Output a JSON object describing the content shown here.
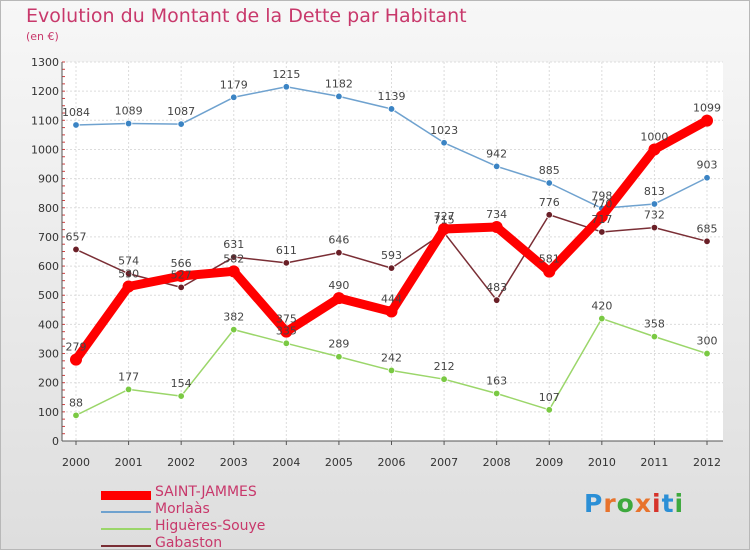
{
  "title": "Evolution du Montant de la Dette par Habitant",
  "subtitle": "(en €)",
  "logo": {
    "text": "Proxiti",
    "colors": [
      "#2b8fd6",
      "#e8732c",
      "#3da93d",
      "#e8732c",
      "#d6332b",
      "#2b8fd6",
      "#3da93d"
    ]
  },
  "chart_data": {
    "type": "line",
    "categories": [
      "2000",
      "2001",
      "2002",
      "2003",
      "2004",
      "2005",
      "2006",
      "2007",
      "2008",
      "2009",
      "2010",
      "2011",
      "2012"
    ],
    "yticks": [
      0,
      100,
      200,
      300,
      400,
      500,
      600,
      700,
      800,
      900,
      1000,
      1100,
      1200,
      1300
    ],
    "ylim": [
      0,
      1300
    ],
    "grid": true,
    "legend_position": "bottom-left",
    "series": [
      {
        "name": "Morlaàs",
        "color": "#6fa2cf",
        "marker_color": "#3b84c4",
        "values": [
          1084,
          1089,
          1087,
          1179,
          1215,
          1182,
          1139,
          1023,
          942,
          885,
          798,
          813,
          903
        ]
      },
      {
        "name": "Higuères-Souye",
        "color": "#9bd66a",
        "marker_color": "#7ac943",
        "values": [
          88,
          177,
          154,
          382,
          335,
          289,
          242,
          212,
          163,
          107,
          420,
          358,
          300
        ]
      },
      {
        "name": "Gabaston",
        "color": "#7a2e35",
        "marker_color": "#6a1f27",
        "values": [
          657,
          574,
          527,
          631,
          611,
          646,
          593,
          715,
          483,
          776,
          717,
          732,
          685
        ]
      },
      {
        "name": "SAINT-JAMMES",
        "color": "#ff0000",
        "marker_color": "#ff0000",
        "values": [
          279,
          530,
          566,
          582,
          375,
          490,
          444,
          727,
          734,
          581,
          770,
          1000,
          1099
        ]
      }
    ],
    "legend_order": [
      "SAINT-JAMMES",
      "Morlaàs",
      "Higuères-Souye",
      "Gabaston"
    ]
  }
}
